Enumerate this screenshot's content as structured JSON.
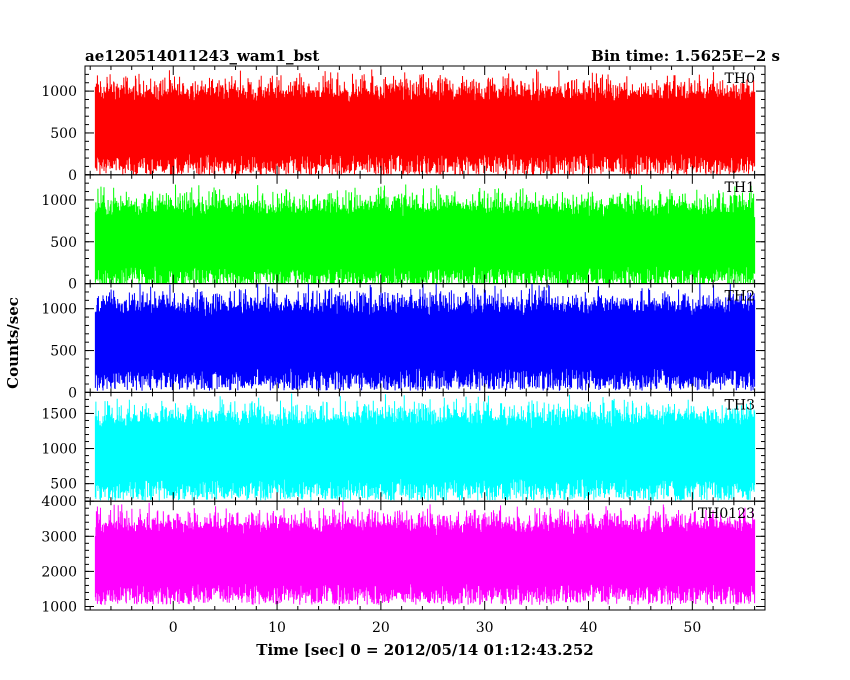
{
  "header": {
    "left_title": "ae120514011243_wam1_bst",
    "right_title": "Bin time: 1.5625E−2 s"
  },
  "chart_data": {
    "type": "line",
    "x_label": "Time [sec] 0 = 2012/05/14 01:12:43.252",
    "y_label": "Counts/sec",
    "x_range": [
      -8.5,
      57.0
    ],
    "x_data_range": [
      -7.5,
      56.0
    ],
    "x_ticks": [
      0,
      10,
      20,
      30,
      40,
      50
    ],
    "panels": [
      {
        "label": "TH0",
        "color": "#ff0000",
        "y_range": [
          0,
          1300
        ],
        "y_ticks": [
          0,
          500,
          1000
        ],
        "approx_mean": 580,
        "approx_low": 80,
        "approx_high": 1250
      },
      {
        "label": "TH1",
        "color": "#00ff00",
        "y_range": [
          0,
          1300
        ],
        "y_ticks": [
          0,
          500,
          1000
        ],
        "approx_mean": 520,
        "approx_low": 50,
        "approx_high": 1200
      },
      {
        "label": "TH2",
        "color": "#0000ff",
        "y_range": [
          0,
          1300
        ],
        "y_ticks": [
          0,
          500,
          1000
        ],
        "approx_mean": 620,
        "approx_low": 50,
        "approx_high": 1250
      },
      {
        "label": "TH3",
        "color": "#00ffff",
        "y_range": [
          250,
          1800
        ],
        "y_ticks": [
          500,
          1000,
          1500
        ],
        "approx_mean": 960,
        "approx_low": 350,
        "approx_high": 1750
      },
      {
        "label": "TH0123",
        "color": "#ff00ff",
        "y_range": [
          900,
          4000
        ],
        "y_ticks": [
          1000,
          2000,
          3000,
          4000
        ],
        "approx_mean": 2400,
        "approx_low": 1100,
        "approx_high": 3800
      }
    ]
  }
}
